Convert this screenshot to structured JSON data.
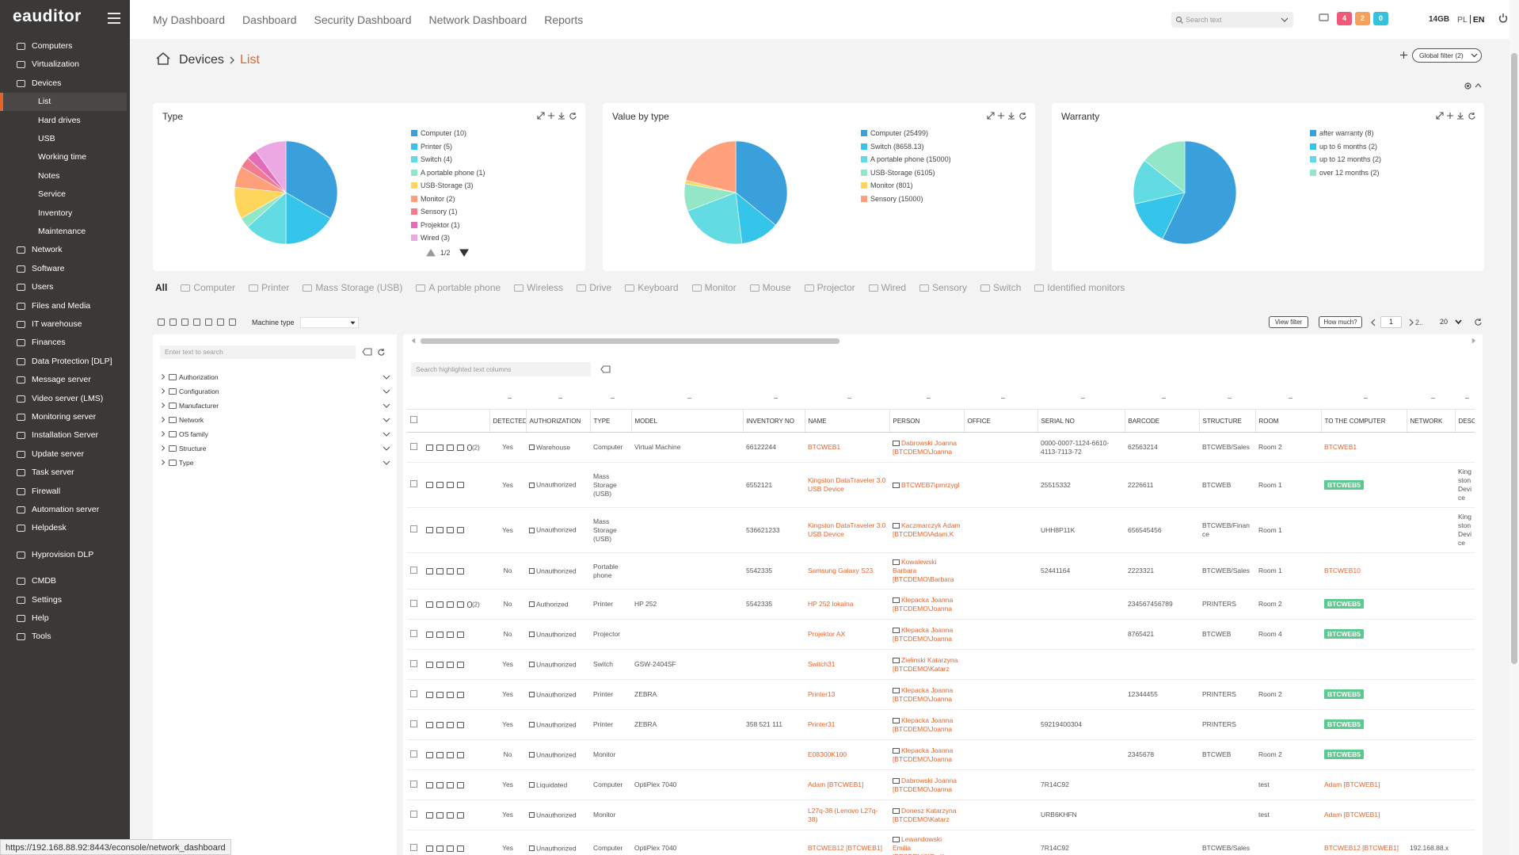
{
  "sidebar": {
    "logo": "eauditor",
    "groups": [
      {
        "items": [
          {
            "label": "Computers"
          },
          {
            "label": "Virtualization"
          },
          {
            "label": "Devices",
            "children": [
              {
                "label": "List",
                "active": true
              },
              {
                "label": "Hard drives"
              },
              {
                "label": "USB"
              },
              {
                "label": "Working time"
              },
              {
                "label": "Notes"
              },
              {
                "label": "Service"
              },
              {
                "label": "Inventory"
              },
              {
                "label": "Maintenance"
              }
            ]
          },
          {
            "label": "Network"
          },
          {
            "label": "Software"
          },
          {
            "label": "Users"
          },
          {
            "label": "Files and Media"
          },
          {
            "label": "IT warehouse"
          },
          {
            "label": "Finances"
          },
          {
            "label": "Data Protection [DLP]"
          },
          {
            "label": "Message server"
          },
          {
            "label": "Video server (LMS)"
          },
          {
            "label": "Monitoring server"
          },
          {
            "label": "Installation Server"
          },
          {
            "label": "Update server"
          },
          {
            "label": "Task server"
          },
          {
            "label": "Firewall"
          },
          {
            "label": "Automation server"
          },
          {
            "label": "Helpdesk"
          }
        ]
      },
      {
        "items": [
          {
            "label": "Hyprovision DLP"
          }
        ]
      },
      {
        "items": [
          {
            "label": "CMDB"
          },
          {
            "label": "Settings"
          },
          {
            "label": "Help"
          },
          {
            "label": "Tools"
          }
        ]
      }
    ]
  },
  "topbar": {
    "nav": [
      "My Dashboard",
      "Dashboard",
      "Security Dashboard",
      "Network Dashboard",
      "Reports"
    ],
    "search_placeholder": "Search text",
    "badges": [
      4,
      2,
      0
    ],
    "memory": "14GB",
    "languages": [
      "PL",
      "EN"
    ]
  },
  "breadcrumb": [
    "Devices",
    "List"
  ],
  "global_filter": "Global filter (2)",
  "chart_data": [
    {
      "type": "pie",
      "title": "Type",
      "categories": [
        "Computer (10)",
        "Printer (5)",
        "Switch (4)",
        "A portable phone (1)",
        "USB-Storage (3)",
        "Monitor (2)",
        "Sensory (1)",
        "Projektor (1)",
        "Wired (3)"
      ],
      "values": [
        10,
        5,
        4,
        1,
        3,
        2,
        1,
        1,
        3
      ],
      "colors": [
        "#3aa0dc",
        "#35c4ea",
        "#62dbe2",
        "#93e6c6",
        "#ffd65c",
        "#ffa07a",
        "#f47b8f",
        "#e46bb8",
        "#eca8e3"
      ],
      "pager": "1/2"
    },
    {
      "type": "pie",
      "title": "Value by type",
      "categories": [
        "Computer (25499)",
        "Switch (8658.13)",
        "A portable phone (15000)",
        "USB-Storage (6105)",
        "Monitor (801)",
        "Sensory (15000)"
      ],
      "values": [
        25499,
        8658.13,
        15000,
        6105,
        801,
        15000
      ],
      "colors": [
        "#3aa0dc",
        "#35c4ea",
        "#62dbe2",
        "#93e6c6",
        "#ffd65c",
        "#ffa07a"
      ]
    },
    {
      "type": "pie",
      "title": "Warranty",
      "categories": [
        "after warranty (8)",
        "up to 6 months (2)",
        "up to 12 months (2)",
        "over 12 months (2)"
      ],
      "values": [
        8,
        2,
        2,
        2
      ],
      "colors": [
        "#3aa0dc",
        "#35c4ea",
        "#62dbe2",
        "#93e6c6"
      ]
    }
  ],
  "tabs": {
    "items": [
      "All",
      "Computer",
      "Printer",
      "Mass Storage (USB)",
      "A portable phone",
      "Wireless",
      "Drive",
      "Keyboard",
      "Monitor",
      "Mouse",
      "Projector",
      "Wired",
      "Sensory",
      "Switch",
      "Identified monitors"
    ],
    "active": 0
  },
  "toolbar": {
    "machine_type_label": "Machine type",
    "view_filter": "View filter",
    "how_much": "How much?",
    "page": 1,
    "next_pages": "2..",
    "page_size": 20
  },
  "filter_panel": {
    "search_placeholder": "Enter text to search",
    "tree": [
      "Authorization",
      "Configuration",
      "Manufacturer",
      "Network",
      "OS family",
      "Structure",
      "Type"
    ]
  },
  "table": {
    "search_placeholder": "Search highlighted text columns",
    "columns": [
      {
        "key": "detected",
        "label": "DETECTED"
      },
      {
        "key": "authorization",
        "label": "AUTHORIZATION"
      },
      {
        "key": "type",
        "label": "TYPE"
      },
      {
        "key": "model",
        "label": "MODEL"
      },
      {
        "key": "inventory_no",
        "label": "INVENTORY NO"
      },
      {
        "key": "name",
        "label": "NAME"
      },
      {
        "key": "person",
        "label": "PERSON"
      },
      {
        "key": "office",
        "label": "OFFICE"
      },
      {
        "key": "serial_no",
        "label": "SERIAL NO"
      },
      {
        "key": "barcode",
        "label": "BARCODE"
      },
      {
        "key": "structure",
        "label": "STRUCTURE"
      },
      {
        "key": "room",
        "label": "ROOM"
      },
      {
        "key": "to_computer",
        "label": "TO THE COMPUTER"
      },
      {
        "key": "network",
        "label": "NETWORK"
      },
      {
        "key": "description",
        "label": "DESCRIPTION"
      }
    ],
    "rows": [
      {
        "attachments": "(2)",
        "detected": "Yes",
        "authorization": "Warehouse",
        "type": "Computer",
        "model": "Virtual Machine",
        "inventory_no": "66122244",
        "name": "BTCWEB1",
        "person": "Dabrowski Joanna [BTCDEMO\\Joanna",
        "serial_no": "0000-0007-1124-6610-4113-7113-72",
        "barcode": "62563214",
        "structure": "BTCWEB/Sales",
        "room": "Room 2",
        "to_computer": "BTCWEB1"
      },
      {
        "detected": "Yes",
        "authorization": "Unauthorized",
        "type": "Mass Storage (USB)",
        "inventory_no": "6552121",
        "name": "Kingston DataTraveler 3.0 USB Device",
        "person": "BTCWEB7\\pmrzygl",
        "serial_no": "25515332",
        "barcode": "2226611",
        "structure": "BTCWEB",
        "room": "Room 1",
        "to_computer": "BTCWEB5",
        "to_computer_badge": true,
        "description": "Kingston Device"
      },
      {
        "detected": "Yes",
        "authorization": "Unauthorized",
        "type": "Mass Storage (USB)",
        "inventory_no": "536621233",
        "name": "Kingston DataTraveler 3.0 USB Device",
        "person": "Kaczmarczyk Adam [BTCDEMO\\Adam.K",
        "serial_no": "UHH8P11K",
        "barcode": "656545456",
        "structure": "BTCWEB/Finance",
        "room": "Room 1",
        "description": "Kingston Device"
      },
      {
        "detected": "No",
        "authorization": "Unauthorized",
        "type": "Portable phone",
        "inventory_no": "5542335",
        "name": "Samsung Galaxy S23",
        "person": "Kowalewski Barbara [BTCDEMO\\Barbara",
        "serial_no": "52441164",
        "barcode": "2223321",
        "structure": "BTCWEB/Sales",
        "room": "Room 1",
        "to_computer": "BTCWEB10"
      },
      {
        "attachments": "(2)",
        "detected": "No",
        "authorization": "Authorized",
        "type": "Printer",
        "model": "HP 252",
        "inventory_no": "5542335",
        "name": "HP 252 lokalna",
        "person": "Klepacka Joanna [BTCDEMO\\Joanna",
        "barcode": "234567456789",
        "structure": "PRINTERS",
        "room": "Room 2",
        "to_computer": "BTCWEB5",
        "to_computer_badge": true
      },
      {
        "detected": "No",
        "authorization": "Unauthorized",
        "type": "Projector",
        "name": "Projektor AX",
        "person": "Klepacka Joanna [BTCDEMO\\Joanna",
        "barcode": "8765421",
        "structure": "BTCWEB",
        "room": "Room 4",
        "to_computer": "BTCWEB5",
        "to_computer_badge": true
      },
      {
        "detected": "Yes",
        "authorization": "Unauthorized",
        "type": "Switch",
        "model": "GSW-2404SF",
        "name": "Switch31",
        "person": "Zielinski Katarzyna [BTCDEMO\\Katarz"
      },
      {
        "detected": "Yes",
        "authorization": "Unauthorized",
        "type": "Printer",
        "model": "ZEBRA",
        "name": "Printer13",
        "person": "Klepacka Joanna [BTCDEMO\\Joanna",
        "barcode": "12344455",
        "structure": "PRINTERS",
        "room": "Room 2",
        "to_computer": "BTCWEB5",
        "to_computer_badge": true
      },
      {
        "detected": "Yes",
        "authorization": "Unauthorized",
        "type": "Printer",
        "model": "ZEBRA",
        "inventory_no": "358 521 111",
        "name": "Printer31",
        "person": "Klepacka Joanna [BTCDEMO\\Joanna",
        "serial_no": "59219400304",
        "structure": "PRINTERS",
        "to_computer": "BTCWEB5",
        "to_computer_badge": true
      },
      {
        "detected": "No",
        "authorization": "Unauthorized",
        "type": "Monitor",
        "name": "E08300K100",
        "person": "Klepacka Joanna [BTCDEMO\\Joanna",
        "barcode": "2345678",
        "structure": "BTCWEB",
        "room": "Room 2",
        "to_computer": "BTCWEB5",
        "to_computer_badge": true
      },
      {
        "detected": "Yes",
        "authorization": "Liquidated",
        "type": "Computer",
        "model": "OptiPlex 7040",
        "name": "Adam [BTCWEB1]",
        "person": "Dabrowski Joanna [BTCDEMO\\Joanna",
        "serial_no": "7R14C92",
        "room": "test",
        "to_computer": "Adam [BTCWEB1]"
      },
      {
        "detected": "Yes",
        "authorization": "Unauthorized",
        "type": "Monitor",
        "name": "L27q-38 (Lenovo L27q-38)",
        "person": "Donesz Katarzyna [BTCDEMO\\Katarz",
        "serial_no": "URB6KHFN",
        "room": "test",
        "to_computer": "Adam [BTCWEB1]"
      },
      {
        "detected": "Yes",
        "authorization": "Unauthorized",
        "type": "Computer",
        "model": "OptiPlex 7040",
        "name": "BTCWEB12 [BTCWEB1]",
        "person": "Lewandowski Emilia [BTCDEMO\\Emilia",
        "serial_no": "7R14C92",
        "structure": "BTCWEB/Sales",
        "to_computer": "BTCWEB12 [BTCWEB1]",
        "network": "192.168.88.x"
      }
    ]
  },
  "status_url": "https://192.168.88.92:8443/econsole/network_dashboard"
}
